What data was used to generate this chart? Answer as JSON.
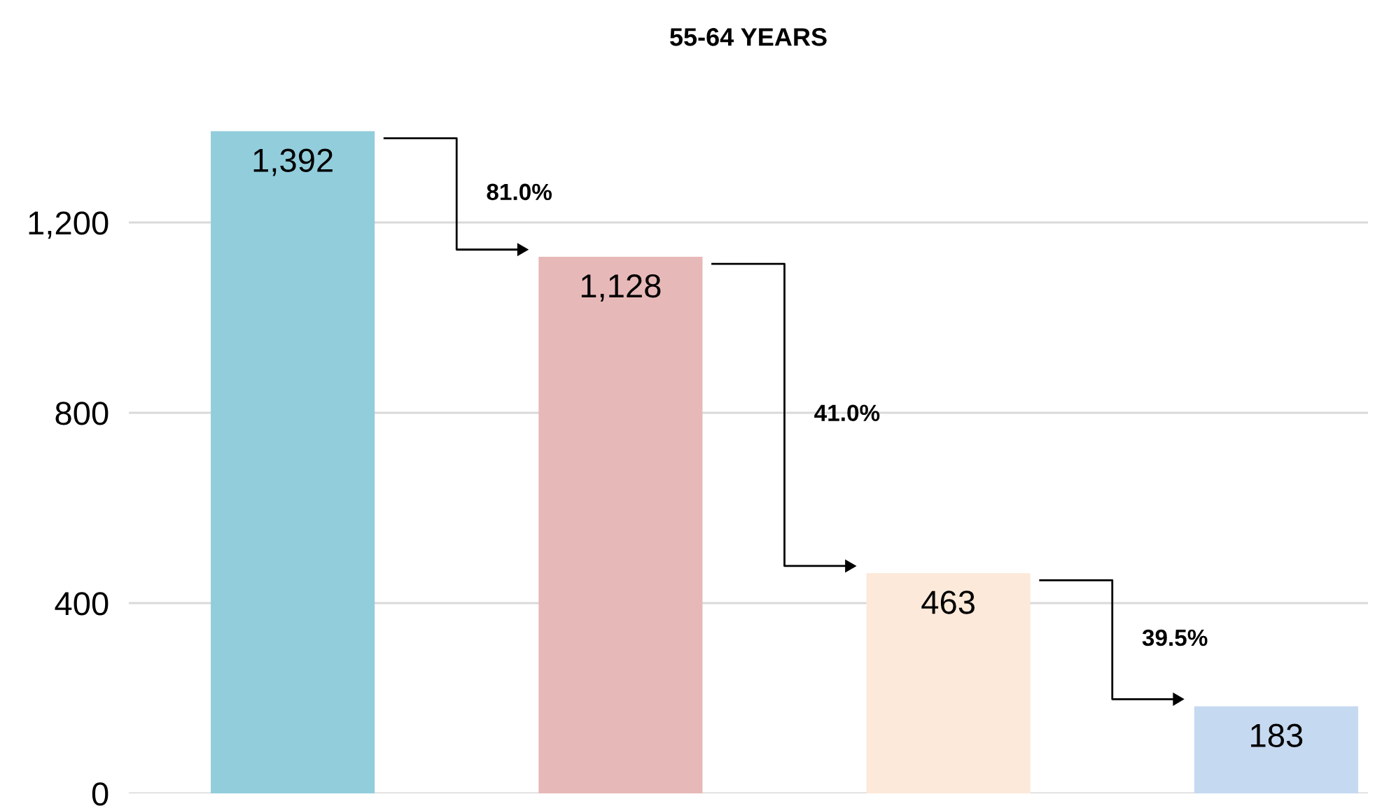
{
  "chart_data": {
    "type": "bar",
    "title": "55-64 YEARS",
    "categories": [
      null,
      null,
      null,
      null
    ],
    "values": [
      1392,
      1128,
      463,
      183
    ],
    "colors": [
      "#92cddc",
      "#e6b9b8",
      "#fde9d9",
      "#c5d9f1"
    ],
    "ylim": [
      0,
      1400
    ],
    "yticks": [
      0,
      {
        "value": 400,
        "label": "400"
      },
      {
        "value": 800,
        "label": "800"
      },
      {
        "value": 1200,
        "label": "1,200"
      }
    ],
    "grid": "y",
    "value_labels": [
      "1,392",
      "1,128",
      "463",
      "183"
    ],
    "annotations": [
      "81.0%",
      "41.0%",
      "39.5%"
    ]
  }
}
